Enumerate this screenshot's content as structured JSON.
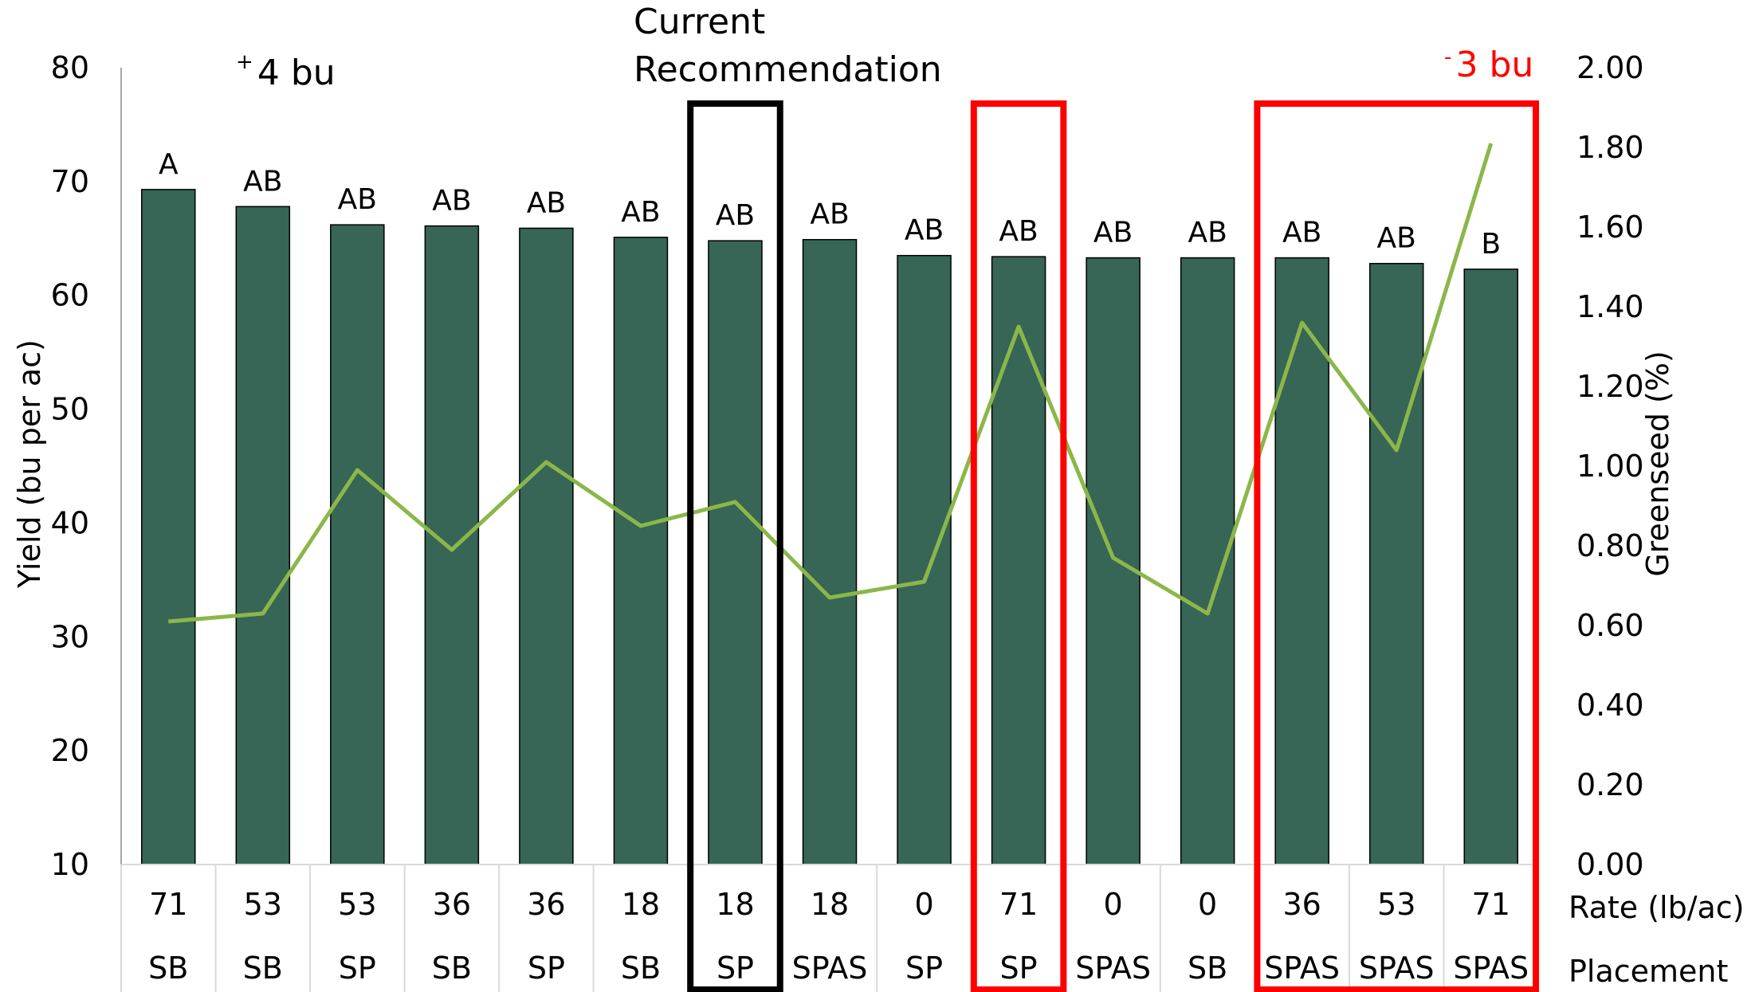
{
  "chart_data": {
    "type": "bar",
    "categories": [
      "71 SB",
      "53 SB",
      "53 SP",
      "36 SB",
      "36 SP",
      "18 SB",
      "18 SP",
      "18 SPAS",
      "0 SP",
      "71 SP",
      "0 SPAS",
      "0 SB",
      "36 SPAS",
      "53 SPAS",
      "71 SPAS"
    ],
    "rates": [
      "71",
      "53",
      "53",
      "36",
      "36",
      "18",
      "18",
      "18",
      "0",
      "71",
      "0",
      "0",
      "36",
      "53",
      "71"
    ],
    "placements": [
      "SB",
      "SB",
      "SP",
      "SB",
      "SP",
      "SB",
      "SP",
      "SPAS",
      "SP",
      "SP",
      "SPAS",
      "SB",
      "SPAS",
      "SPAS",
      "SPAS"
    ],
    "series": [
      {
        "type": "bar",
        "axis": "left",
        "color": "#376556",
        "values": [
          69.3,
          67.8,
          66.2,
          66.1,
          65.9,
          65.1,
          64.8,
          64.9,
          63.5,
          63.4,
          63.3,
          63.3,
          63.3,
          62.8,
          62.3
        ],
        "letters": [
          "A",
          "AB",
          "AB",
          "AB",
          "AB",
          "AB",
          "AB",
          "AB",
          "AB",
          "AB",
          "AB",
          "AB",
          "AB",
          "AB",
          "B"
        ]
      },
      {
        "type": "line",
        "axis": "right",
        "color": "#8bb74a",
        "values": [
          0.61,
          0.63,
          0.99,
          0.79,
          1.01,
          0.85,
          0.91,
          0.67,
          0.71,
          1.35,
          0.77,
          0.63,
          1.36,
          1.04,
          1.81
        ]
      }
    ],
    "y_left": {
      "label": "Yield (bu per ac)",
      "min": 10,
      "max": 80,
      "ticks": [
        "10",
        "20",
        "30",
        "40",
        "50",
        "60",
        "70",
        "80"
      ]
    },
    "y_right": {
      "label": "Greenseed (%)",
      "min": 0,
      "max": 2,
      "ticks": [
        "0.00",
        "0.20",
        "0.40",
        "0.60",
        "0.80",
        "1.00",
        "1.20",
        "1.40",
        "1.60",
        "1.80",
        "2.00"
      ]
    },
    "row_labels": {
      "rate": "Rate (lb/ac)",
      "placement": "Placement"
    },
    "annotations": {
      "plus": {
        "sup": "+",
        "text": "4 bu"
      },
      "minus": {
        "sup": "-",
        "text": " 3 bu",
        "color": "#ff0000"
      },
      "current": {
        "line1": "Current",
        "line2": "Recommendation"
      }
    },
    "highlight_boxes": [
      {
        "first": 6,
        "last": 6,
        "color": "#000000"
      },
      {
        "first": 9,
        "last": 9,
        "color": "#ff0000"
      },
      {
        "first": 12,
        "last": 14,
        "color": "#ff0000"
      }
    ],
    "grid": false,
    "legend": "none"
  }
}
